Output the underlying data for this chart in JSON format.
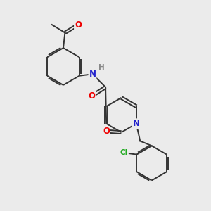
{
  "background_color": "#ebebeb",
  "bond_color": "#333333",
  "bond_width": 1.4,
  "atom_colors": {
    "O": "#ee0000",
    "N": "#2222cc",
    "Cl": "#22aa22",
    "H": "#888888",
    "C": "#333333"
  },
  "font_size_atom": 8.5,
  "font_size_H": 7.5
}
